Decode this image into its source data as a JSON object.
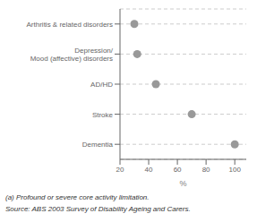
{
  "chart_data": {
    "type": "dot",
    "orientation": "horizontal",
    "categories": [
      "Arthritis & related disorders",
      "Depression/\nMood (affective) disorders",
      "AD/HD",
      "Stroke",
      "Dementia"
    ],
    "values": [
      30,
      32,
      45,
      70,
      100
    ],
    "color": "#999999",
    "xlim": [
      20,
      108
    ],
    "xticks": [
      20,
      40,
      60,
      80,
      100
    ],
    "xlabel": "%",
    "grid": true,
    "annotations": [
      "(a) Profound or severe core activity limitation.",
      "Source: ABS 2003 Survey of Disability Ageing and Carers."
    ]
  }
}
